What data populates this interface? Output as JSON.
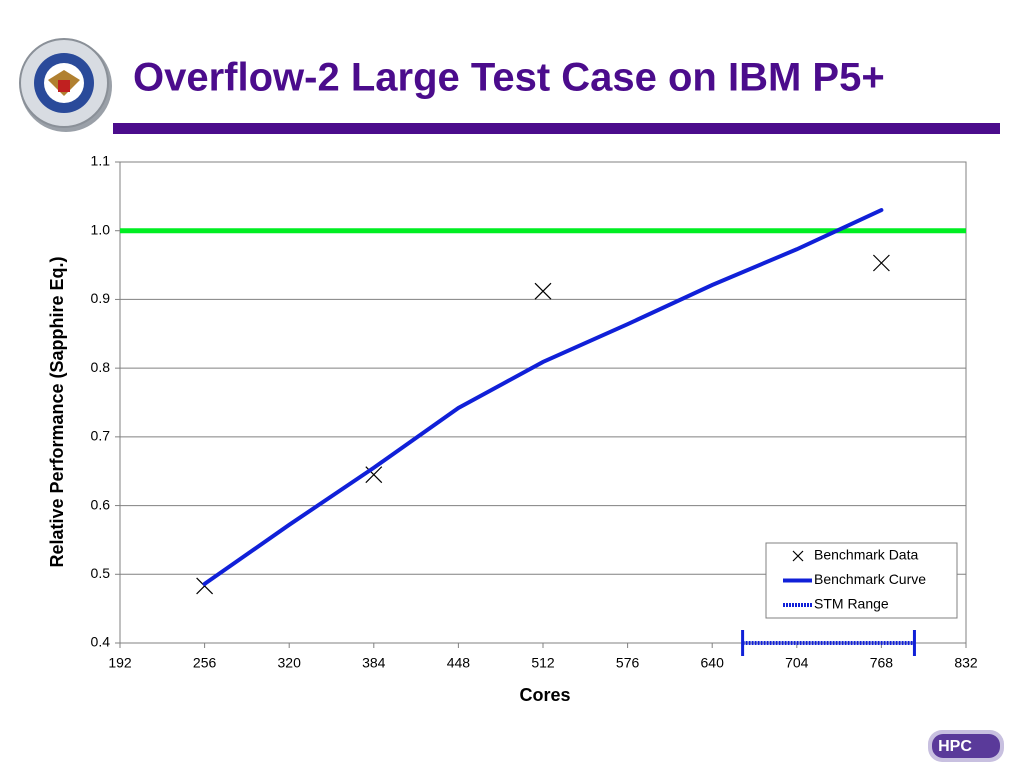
{
  "slide": {
    "title": "Overflow-2 Large Test Case on IBM P5+",
    "logo_text": "HPC"
  },
  "chart_data": {
    "type": "line",
    "x_label": "Cores",
    "y_label": "Relative Performance (Sapphire Eq.)",
    "xlim": [
      192,
      832
    ],
    "xticks": [
      192,
      256,
      320,
      384,
      448,
      512,
      576,
      640,
      704,
      768,
      832
    ],
    "ylim": [
      0.4,
      1.1
    ],
    "yticks": [
      0.4,
      0.5,
      0.6,
      0.7,
      0.8,
      0.9,
      {
        "value": 1,
        "label": "1.0"
      },
      1.1
    ],
    "grid": true,
    "reference_line": {
      "y": 1,
      "color": "#00ee22"
    },
    "series": [
      {
        "name": "Benchmark Data",
        "style": "markers",
        "color": "#000000",
        "x": [
          256,
          384,
          512,
          768
        ],
        "values": [
          0.483,
          0.645,
          0.912,
          0.953
        ]
      },
      {
        "name": "Benchmark Curve",
        "style": "line",
        "color": "#1020d8",
        "x": [
          256,
          320,
          384,
          448,
          512,
          576,
          640,
          704,
          768
        ],
        "values": [
          0.486,
          0.572,
          0.655,
          0.742,
          0.809,
          0.864,
          0.921,
          0.973,
          1.03
        ]
      },
      {
        "name": "STM Range",
        "style": "range",
        "color": "#1020d8",
        "x": [
          663,
          793
        ],
        "values": [
          0.4,
          0.4
        ]
      }
    ],
    "legend": "lower-right"
  }
}
